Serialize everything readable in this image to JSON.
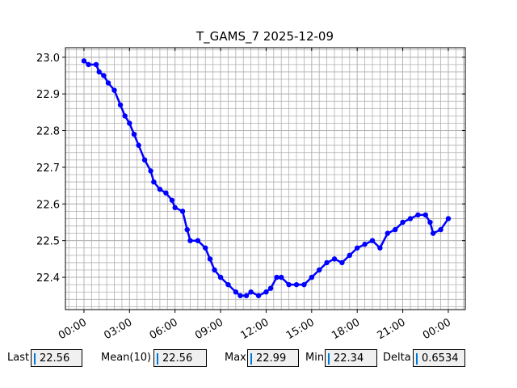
{
  "chart_data": {
    "type": "line",
    "title": "T_GAMS_7 2025-12-09",
    "x": [
      0.0,
      0.3,
      0.8,
      1.0,
      1.3,
      1.6,
      2.0,
      2.4,
      2.7,
      3.0,
      3.3,
      3.6,
      4.0,
      4.4,
      4.6,
      5.0,
      5.4,
      5.8,
      6.0,
      6.5,
      6.8,
      7.0,
      7.5,
      8.0,
      8.3,
      8.6,
      9.0,
      9.5,
      10.0,
      10.3,
      10.7,
      11.0,
      11.5,
      12.0,
      12.3,
      12.7,
      13.0,
      13.5,
      14.0,
      14.5,
      15.0,
      15.5,
      16.0,
      16.5,
      17.0,
      17.5,
      18.0,
      18.5,
      19.0,
      19.5,
      20.0,
      20.5,
      21.0,
      21.5,
      22.0,
      22.5,
      22.8,
      23.0,
      23.5,
      24.0
    ],
    "series": [
      {
        "color": "#0000ff",
        "values": [
          22.99,
          22.98,
          22.98,
          22.96,
          22.95,
          22.93,
          22.91,
          22.87,
          22.84,
          22.82,
          22.79,
          22.76,
          22.72,
          22.69,
          22.66,
          22.64,
          22.63,
          22.61,
          22.59,
          22.58,
          22.53,
          22.5,
          22.5,
          22.48,
          22.45,
          22.42,
          22.4,
          22.38,
          22.36,
          22.35,
          22.35,
          22.36,
          22.35,
          22.36,
          22.37,
          22.4,
          22.4,
          22.38,
          22.38,
          22.38,
          22.4,
          22.42,
          22.44,
          22.45,
          22.44,
          22.46,
          22.48,
          22.49,
          22.5,
          22.48,
          22.52,
          22.53,
          22.55,
          22.56,
          22.57,
          22.57,
          22.55,
          22.52,
          22.53,
          22.56
        ]
      }
    ],
    "xlim": [
      -1.22,
      25.12
    ],
    "ylim": [
      22.312,
      23.026
    ],
    "xticks": [
      {
        "value": 0,
        "label": "00:00"
      },
      {
        "value": 3,
        "label": "03:00"
      },
      {
        "value": 6,
        "label": "06:00"
      },
      {
        "value": 9,
        "label": "09:00"
      },
      {
        "value": 12,
        "label": "12:00"
      },
      {
        "value": 15,
        "label": "15:00"
      },
      {
        "value": 18,
        "label": "18:00"
      },
      {
        "value": 21,
        "label": "21:00"
      },
      {
        "value": 24,
        "label": "00:00"
      }
    ],
    "yticks": [
      {
        "value": 22.4,
        "label": "22.4"
      },
      {
        "value": 22.5,
        "label": "22.5"
      },
      {
        "value": 22.6,
        "label": "22.6"
      },
      {
        "value": 22.7,
        "label": "22.7"
      },
      {
        "value": 22.8,
        "label": "22.8"
      },
      {
        "value": 22.9,
        "label": "22.9"
      },
      {
        "value": 23.0,
        "label": "23.0"
      }
    ],
    "grid": true,
    "minor_grid": true
  },
  "stats": [
    {
      "label": "Last",
      "value": 22.56
    },
    {
      "label": "Mean(10)",
      "value": 22.56
    },
    {
      "label": "Max",
      "value": 22.99
    },
    {
      "label": "Min",
      "value": 22.34
    },
    {
      "label": "Delta",
      "value": 0.6534
    }
  ]
}
